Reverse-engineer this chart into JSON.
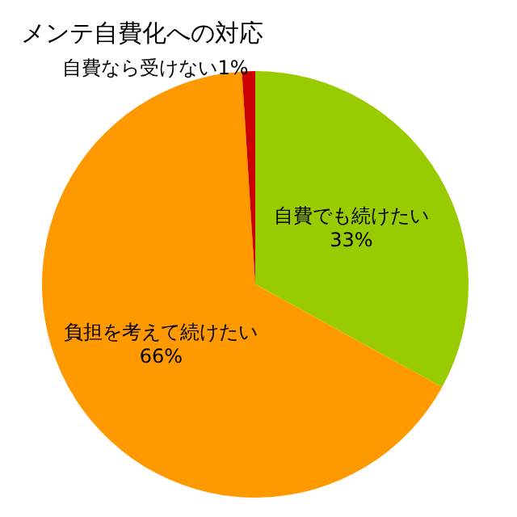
{
  "chart_data": {
    "type": "pie",
    "title": "メンテ自費化への対応",
    "categories": [
      "自費でも続けたい",
      "負担を考えて続けたい",
      "自費なら受けない"
    ],
    "values": [
      33,
      66,
      1
    ],
    "value_labels": [
      "33%",
      "66%",
      "1%"
    ],
    "colors": [
      "#99cc00",
      "#ff9900",
      "#cc0000"
    ],
    "legend": false
  }
}
